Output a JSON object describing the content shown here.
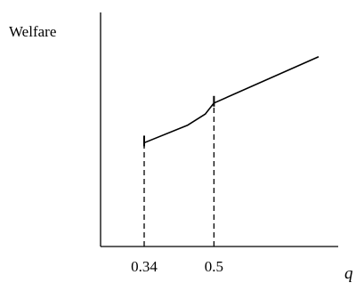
{
  "chart_data": {
    "type": "line",
    "ylabel": "Welfare",
    "xlabel": "q",
    "x_ticks": [
      0.34,
      0.5
    ],
    "x_tick_labels": [
      "0.34",
      "0.5"
    ],
    "xlim": [
      0.24,
      0.74
    ],
    "ylim": [
      0,
      10
    ],
    "grid": false,
    "legend": "none",
    "series": [
      {
        "x": [
          0.34,
          0.44,
          0.48,
          0.5
        ],
        "y": [
          4.7,
          5.5,
          6.0,
          6.5
        ]
      },
      {
        "x": [
          0.5,
          0.74
        ],
        "y": [
          6.5,
          8.6
        ]
      }
    ],
    "reference_lines": [
      {
        "x": 0.34,
        "y_from": 0,
        "y_to": 4.7,
        "style": "dashed"
      },
      {
        "x": 0.5,
        "y_from": 0,
        "y_to": 6.5,
        "style": "dashed"
      }
    ],
    "colors": {
      "line": "#000000",
      "axis": "#000000"
    }
  }
}
